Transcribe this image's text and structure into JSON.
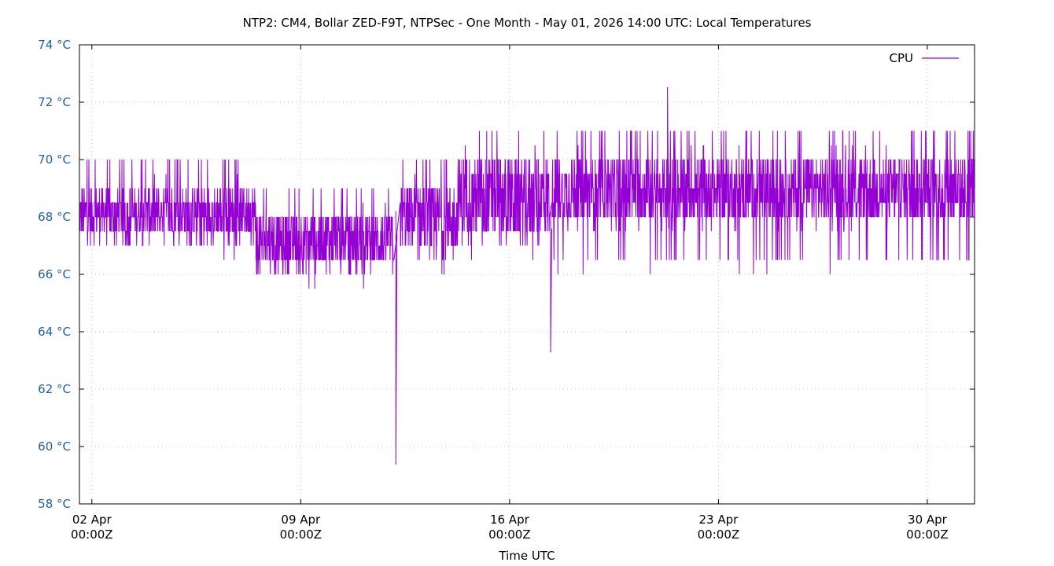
{
  "chart_data": {
    "type": "line",
    "title": "NTP2: CM4, Bollar ZED-F9T, NTPSec - One Month - May 01, 2026 14:00 UTC: Local Temperatures",
    "xlabel": "Time UTC",
    "ylabel": "",
    "ylim": [
      58,
      74
    ],
    "xlim": [
      "2026-04-01T14:00Z",
      "2026-05-01T14:00Z"
    ],
    "y_ticks": [
      "58 °C",
      "60 °C",
      "62 °C",
      "64 °C",
      "66 °C",
      "68 °C",
      "70 °C",
      "72 °C",
      "74 °C"
    ],
    "y_tick_values": [
      58,
      60,
      62,
      64,
      66,
      68,
      70,
      72,
      74
    ],
    "x_ticks": [
      {
        "date": "2026-04-02T00:00Z",
        "line1": "02 Apr",
        "line2": "00:00Z"
      },
      {
        "date": "2026-04-09T00:00Z",
        "line1": "09 Apr",
        "line2": "00:00Z"
      },
      {
        "date": "2026-04-16T00:00Z",
        "line1": "16 Apr",
        "line2": "00:00Z"
      },
      {
        "date": "2026-04-23T00:00Z",
        "line1": "23 Apr",
        "line2": "00:00Z"
      },
      {
        "date": "2026-04-30T00:00Z",
        "line1": "30 Apr",
        "line2": "00:00Z"
      }
    ],
    "grid": true,
    "legend": "top-right",
    "colors": {
      "series": "#9400d3",
      "ytick": "#1f5fa8",
      "frame": "#000000",
      "grid": "#c8c8c8"
    },
    "series": [
      {
        "name": "CPU",
        "x": [
          "2026-04-01T14:00Z",
          "2026-04-02T00:00Z",
          "2026-04-03T00:00Z",
          "2026-04-04T00:00Z",
          "2026-04-05T00:00Z",
          "2026-04-06T00:00Z",
          "2026-04-07T00:00Z",
          "2026-04-07T12:00Z",
          "2026-04-08T00:00Z",
          "2026-04-09T00:00Z",
          "2026-04-10T00:00Z",
          "2026-04-11T00:00Z",
          "2026-04-12T00:00Z",
          "2026-04-12T04:00Z",
          "2026-04-12T07:00Z",
          "2026-04-12T12:00Z",
          "2026-04-13T00:00Z",
          "2026-04-14T00:00Z",
          "2026-04-14T06:00Z",
          "2026-04-15T00:00Z",
          "2026-04-16T00:00Z",
          "2026-04-17T00:00Z",
          "2026-04-17T08:00Z",
          "2026-04-17T18:00Z",
          "2026-04-18T00:00Z",
          "2026-04-19T00:00Z",
          "2026-04-20T00:00Z",
          "2026-04-21T00:00Z",
          "2026-04-21T06:00Z",
          "2026-04-21T12:00Z",
          "2026-04-22T00:00Z",
          "2026-04-23T00:00Z",
          "2026-04-24T00:00Z",
          "2026-04-25T00:00Z",
          "2026-04-26T00:00Z",
          "2026-04-27T00:00Z",
          "2026-04-28T00:00Z",
          "2026-04-29T00:00Z",
          "2026-04-30T00:00Z",
          "2026-05-01T00:00Z",
          "2026-05-01T14:00Z"
        ],
        "y": [
          68.2,
          68.3,
          68.1,
          68.2,
          68.0,
          68.2,
          68.3,
          67.4,
          67.3,
          67.2,
          67.4,
          67.3,
          67.5,
          59.4,
          67.8,
          67.9,
          68.0,
          68.2,
          68.6,
          68.4,
          68.3,
          68.2,
          63.3,
          68.8,
          68.9,
          68.7,
          68.9,
          68.8,
          72.5,
          68.9,
          69.0,
          68.9,
          68.7,
          68.8,
          68.9,
          68.7,
          68.8,
          68.9,
          68.5,
          68.4,
          68.2
        ]
      }
    ],
    "bands": [
      {
        "from": "2026-04-01T14:00Z",
        "to": "2026-04-07T12:00Z",
        "low": 67.2,
        "high": 69.0,
        "min": 66.7,
        "max": 70.1
      },
      {
        "from": "2026-04-07T12:00Z",
        "to": "2026-04-12T03:00Z",
        "low": 66.2,
        "high": 68.2,
        "min": 65.7,
        "max": 69.1
      },
      {
        "from": "2026-04-12T08:00Z",
        "to": "2026-04-14T06:00Z",
        "low": 66.7,
        "high": 69.1,
        "min": 66.2,
        "max": 70.1
      },
      {
        "from": "2026-04-14T06:00Z",
        "to": "2026-04-17T08:00Z",
        "low": 67.2,
        "high": 70.1,
        "min": 66.7,
        "max": 71.1
      },
      {
        "from": "2026-04-17T10:00Z",
        "to": "2026-05-01T14:00Z",
        "low": 67.7,
        "high": 70.1,
        "min": 66.2,
        "max": 71.1
      }
    ],
    "spikes": [
      {
        "at": "2026-04-12T04:30Z",
        "value": 59.4
      },
      {
        "at": "2026-04-17T09:00Z",
        "value": 63.3
      },
      {
        "at": "2026-04-21T07:00Z",
        "value": 72.5
      }
    ]
  }
}
